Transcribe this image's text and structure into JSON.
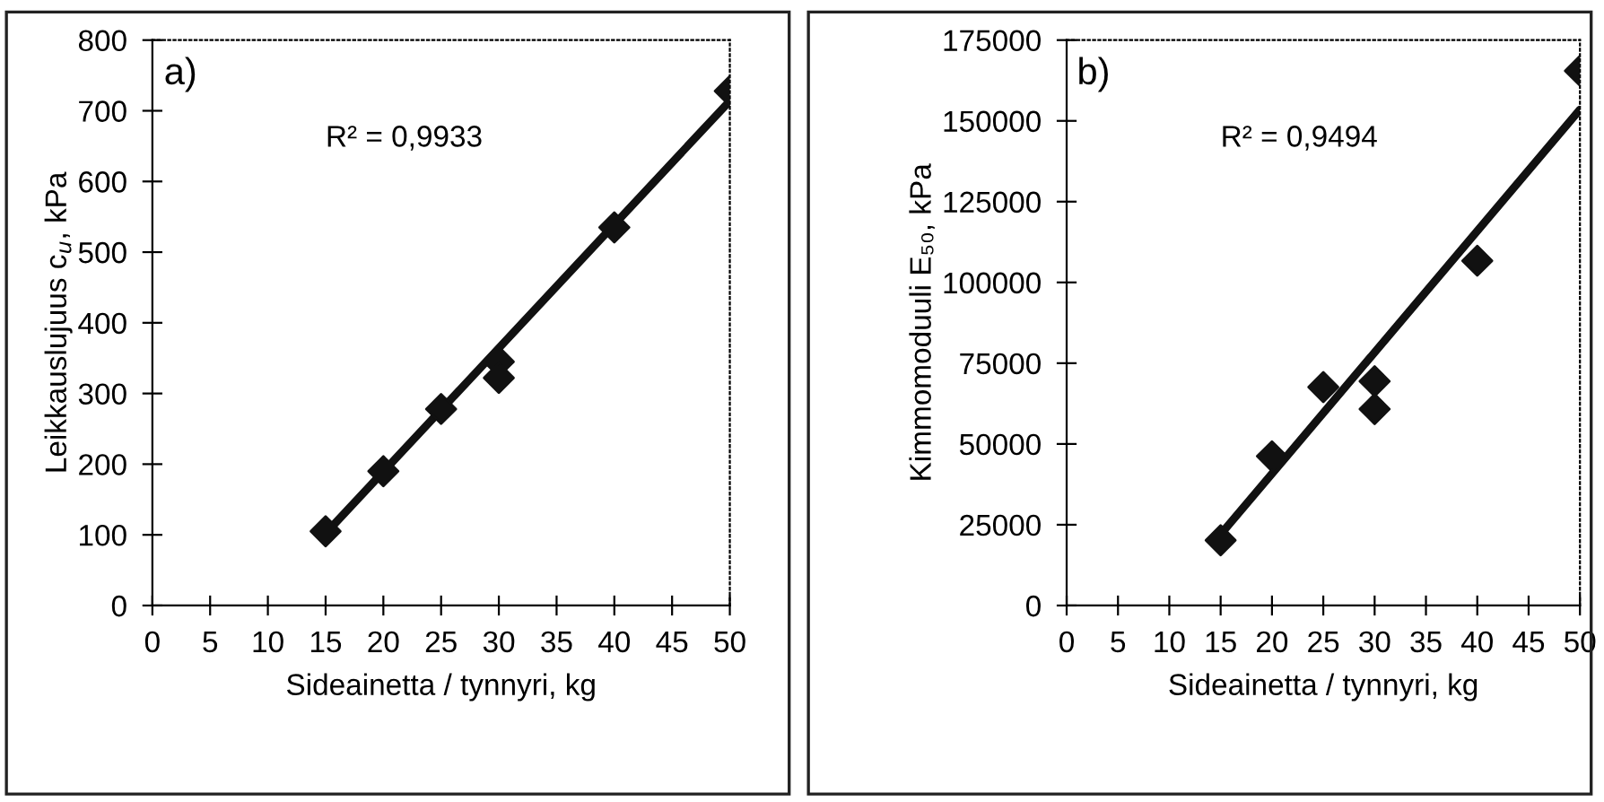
{
  "chart_data": [
    {
      "type": "scatter",
      "xlabel": "Sideainetta / tynnyri, kg",
      "ylabel": "Leikkauslujuus c$_{u}$, kPa",
      "annotations": [
        "a)",
        "R² = 0,9933"
      ],
      "xlim": [
        0,
        50
      ],
      "xticks": [
        0,
        5,
        10,
        15,
        20,
        25,
        30,
        35,
        40,
        45,
        50
      ],
      "ylim": [
        0,
        800
      ],
      "yticks": [
        0,
        100,
        200,
        300,
        400,
        500,
        600,
        700,
        800
      ],
      "grid": false,
      "legend": false,
      "series": [
        {
          "color": "#111111",
          "x": [
            15,
            20,
            25,
            30,
            30,
            40,
            50
          ],
          "values": [
            105,
            190,
            278,
            345,
            322,
            535,
            728
          ],
          "marker": "diamond"
        },
        {
          "type": "line",
          "color": "#111111",
          "x": [
            15,
            50
          ],
          "values": [
            102,
            714
          ],
          "line_style": "solid",
          "marker": "none"
        }
      ]
    },
    {
      "type": "scatter",
      "xlabel": "Sideainetta / tynnyri, kg",
      "ylabel": "Kimmomoduuli E₅₀, kPa",
      "annotations": [
        "b)",
        "R² = 0,9494"
      ],
      "xlim": [
        0,
        50
      ],
      "xticks": [
        0,
        5,
        10,
        15,
        20,
        25,
        30,
        35,
        40,
        45,
        50
      ],
      "ylim": [
        0,
        175000
      ],
      "yticks": [
        0,
        25000,
        50000,
        75000,
        100000,
        125000,
        150000,
        175000
      ],
      "grid": false,
      "legend": false,
      "series": [
        {
          "color": "#111111",
          "x": [
            15,
            20,
            25,
            30,
            30,
            40,
            50
          ],
          "values": [
            20200,
            46200,
            67600,
            69400,
            60800,
            106700,
            165500
          ],
          "marker": "diamond"
        },
        {
          "type": "line",
          "color": "#111111",
          "x": [
            15,
            50
          ],
          "values": [
            22000,
            153500
          ],
          "line_style": "solid",
          "marker": "none"
        }
      ]
    }
  ]
}
